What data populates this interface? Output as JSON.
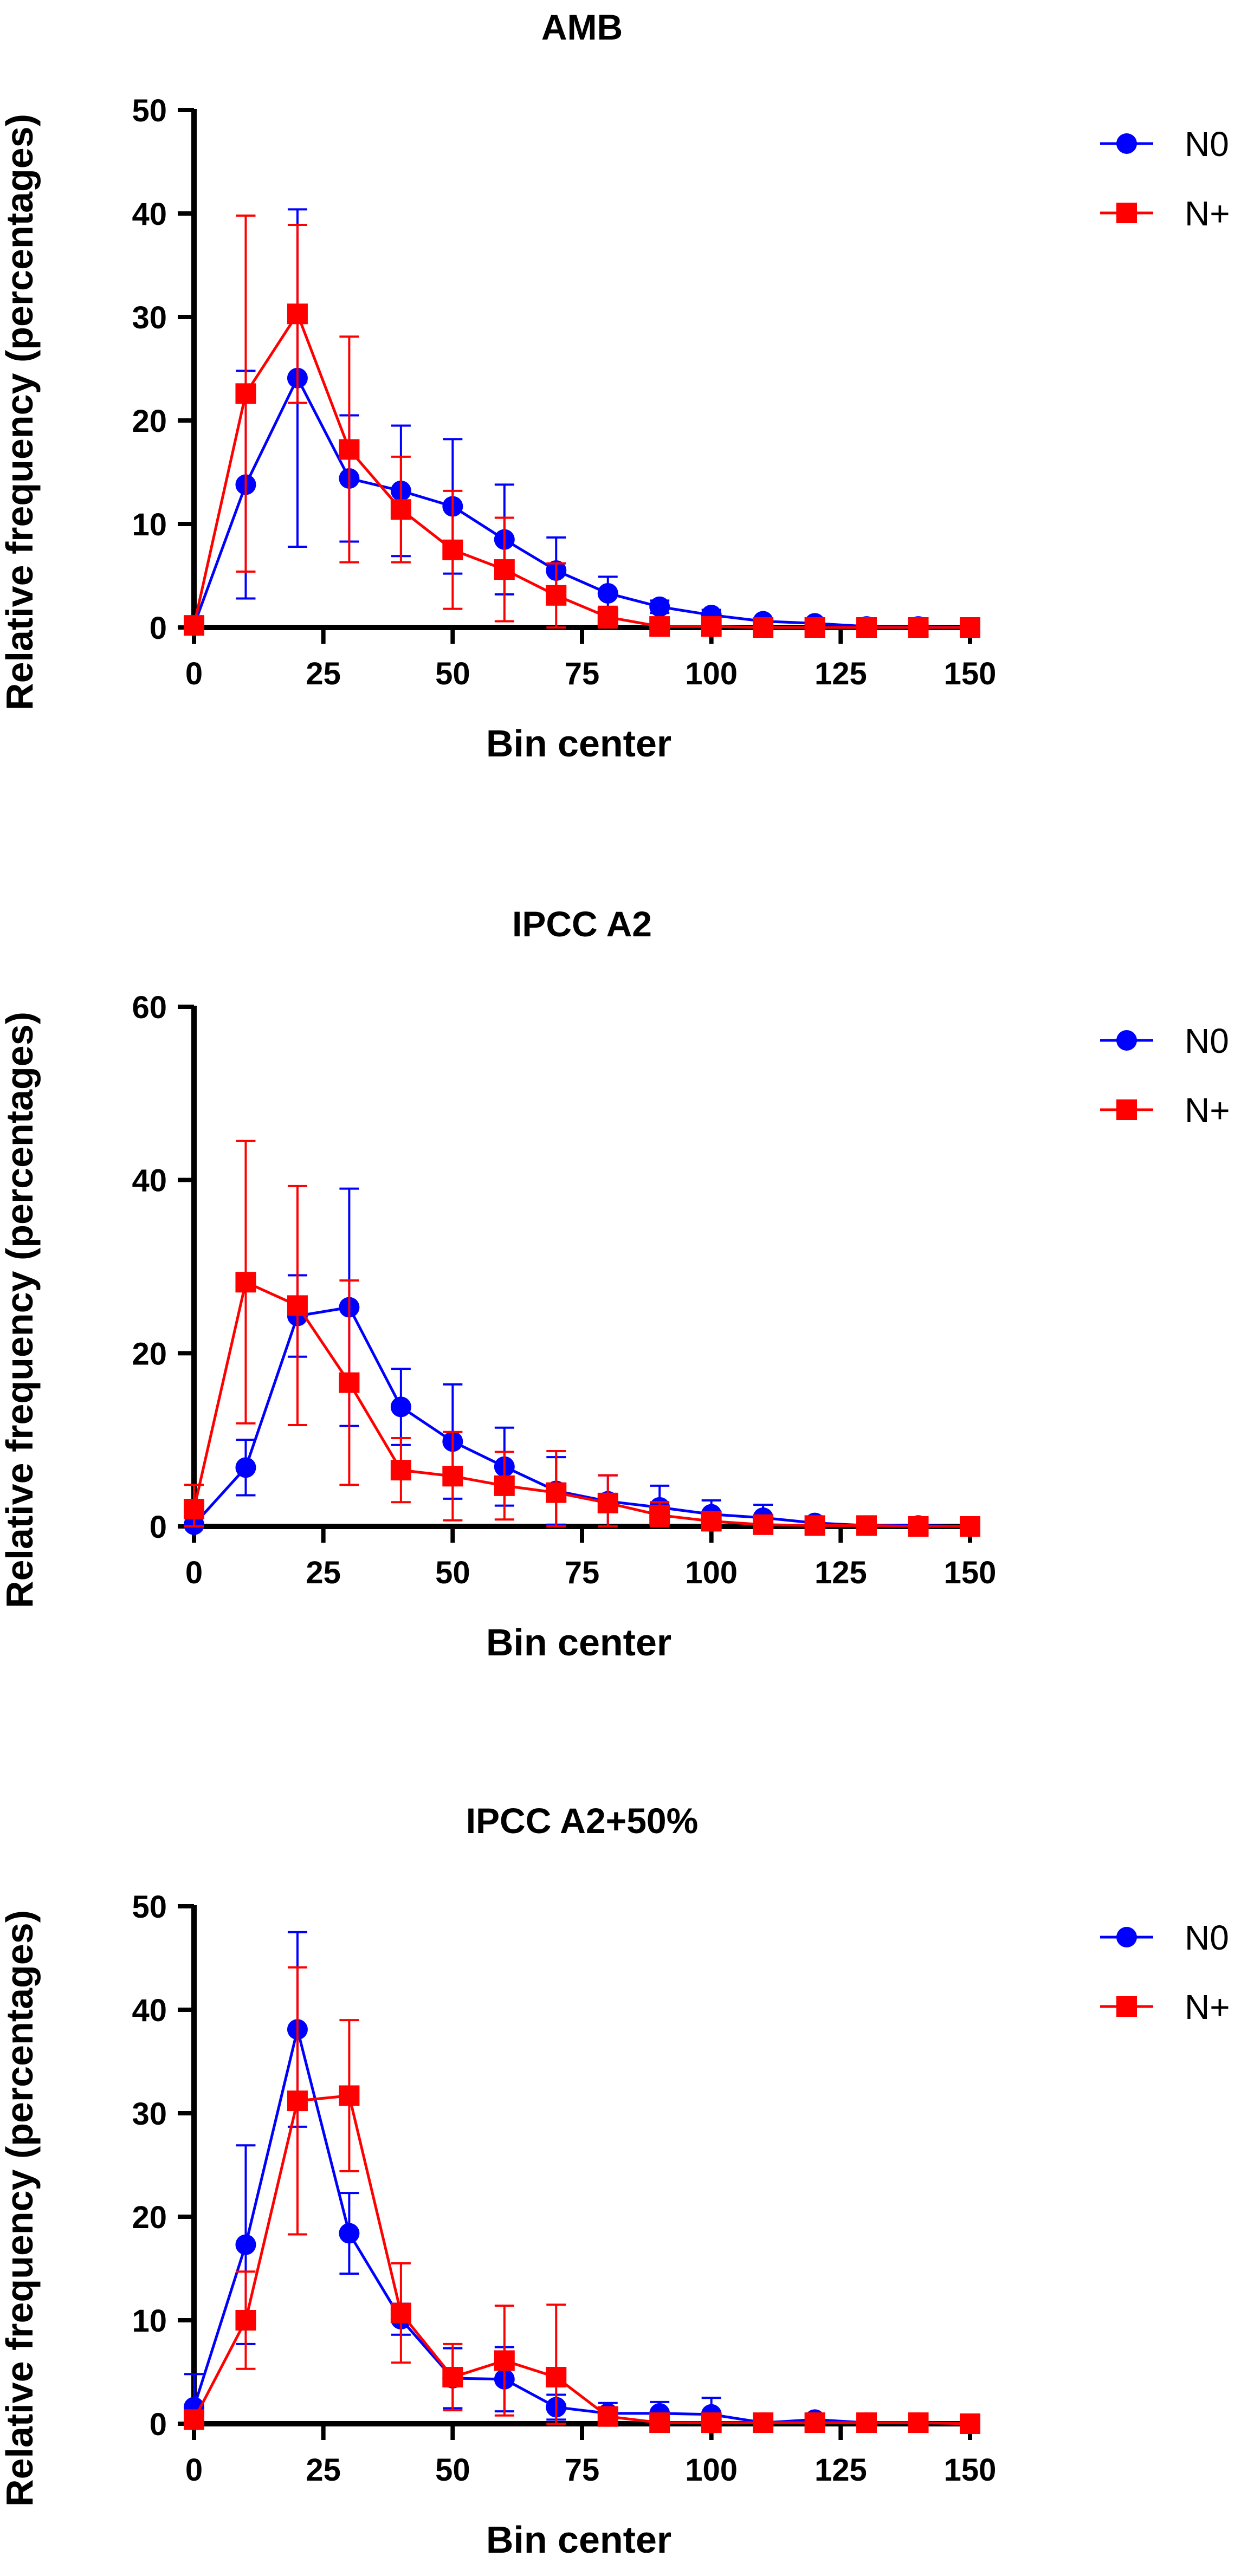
{
  "chart_data": [
    {
      "type": "line",
      "title": "AMB",
      "xlabel": "Bin center",
      "ylabel": "Relative frequency (percentages)",
      "xlim": [
        0,
        150
      ],
      "ylim": [
        0,
        50
      ],
      "xticks": [
        0,
        25,
        50,
        75,
        100,
        125,
        150
      ],
      "yticks": [
        0,
        10,
        20,
        30,
        40,
        50
      ],
      "x": [
        0,
        10,
        20,
        30,
        40,
        50,
        60,
        70,
        80,
        90,
        100,
        110,
        120,
        130,
        140,
        150
      ],
      "legend_position": "top-right",
      "series": [
        {
          "name": "N0",
          "color": "#0000ff",
          "marker": "circle",
          "values": [
            0.2,
            13.8,
            24.1,
            14.4,
            13.2,
            11.7,
            8.5,
            5.5,
            3.3,
            2.0,
            1.2,
            0.6,
            0.4,
            0.1,
            0.1,
            0.0
          ],
          "errors": [
            0.2,
            11.0,
            16.3,
            6.1,
            6.3,
            6.5,
            5.3,
            3.2,
            1.6,
            0.6,
            0.5,
            0.2,
            0.2,
            0.1,
            0.1,
            0.0
          ]
        },
        {
          "name": "N+",
          "color": "#ff0000",
          "marker": "square",
          "values": [
            0.2,
            22.6,
            30.3,
            17.2,
            11.4,
            7.5,
            5.6,
            3.1,
            1.0,
            0.1,
            0.1,
            0.0,
            0.0,
            0.0,
            0.0,
            0.0
          ],
          "errors": [
            0.2,
            17.2,
            8.6,
            10.9,
            5.1,
            5.7,
            5.0,
            3.1,
            1.0,
            0.1,
            0.1,
            0.0,
            0.0,
            0.0,
            0.0,
            0.0
          ]
        }
      ]
    },
    {
      "type": "line",
      "title": "IPCC A2",
      "xlabel": "Bin center",
      "ylabel": "Relative frequency (percentages)",
      "xlim": [
        0,
        150
      ],
      "ylim": [
        0,
        60
      ],
      "xticks": [
        0,
        25,
        50,
        75,
        100,
        125,
        150
      ],
      "yticks": [
        0,
        20,
        40,
        60
      ],
      "x": [
        0,
        10,
        20,
        30,
        40,
        50,
        60,
        70,
        80,
        90,
        100,
        110,
        120,
        130,
        140,
        150
      ],
      "legend_position": "top-right",
      "series": [
        {
          "name": "N0",
          "color": "#0000ff",
          "marker": "circle",
          "values": [
            0.2,
            6.8,
            24.3,
            25.3,
            13.8,
            9.8,
            6.9,
            4.1,
            2.9,
            2.2,
            1.4,
            1.0,
            0.4,
            0.1,
            0.1,
            0.0
          ],
          "errors": [
            0.2,
            3.2,
            4.7,
            13.7,
            4.4,
            6.6,
            4.5,
            3.9,
            3.0,
            2.5,
            1.6,
            1.5,
            0.3,
            0.1,
            0.1,
            0.0
          ]
        },
        {
          "name": "N+",
          "color": "#ff0000",
          "marker": "square",
          "values": [
            2.0,
            28.2,
            25.5,
            16.6,
            6.5,
            5.8,
            4.7,
            3.9,
            2.7,
            1.3,
            0.6,
            0.2,
            0.1,
            0.1,
            0.0,
            0.0
          ],
          "errors": [
            2.8,
            16.3,
            13.8,
            11.8,
            3.7,
            5.1,
            3.9,
            4.8,
            3.2,
            1.5,
            0.7,
            0.3,
            0.1,
            0.1,
            0.0,
            0.0
          ]
        }
      ]
    },
    {
      "type": "line",
      "title": "IPCC A2+50%",
      "xlabel": "Bin center",
      "ylabel": "Relative frequency (percentages)",
      "xlim": [
        0,
        150
      ],
      "ylim": [
        0,
        50
      ],
      "xticks": [
        0,
        25,
        50,
        75,
        100,
        125,
        150
      ],
      "yticks": [
        0,
        10,
        20,
        30,
        40,
        50
      ],
      "x": [
        0,
        10,
        20,
        30,
        40,
        50,
        60,
        70,
        80,
        90,
        100,
        110,
        120,
        130,
        140,
        150
      ],
      "legend_position": "top-right",
      "series": [
        {
          "name": "N0",
          "color": "#0000ff",
          "marker": "circle",
          "values": [
            1.6,
            17.3,
            38.1,
            18.4,
            10.1,
            4.4,
            4.3,
            1.6,
            1.0,
            1.0,
            0.9,
            0.1,
            0.4,
            0.1,
            0.1,
            0.0
          ],
          "errors": [
            3.2,
            9.6,
            9.4,
            3.9,
            1.5,
            2.9,
            3.1,
            1.2,
            1.0,
            1.1,
            1.6,
            0.1,
            0.4,
            0.1,
            0.1,
            0.0
          ]
        },
        {
          "name": "N+",
          "color": "#ff0000",
          "marker": "square",
          "values": [
            0.4,
            10.0,
            31.2,
            31.7,
            10.7,
            4.5,
            6.1,
            4.5,
            0.7,
            0.1,
            0.1,
            0.1,
            0.1,
            0.1,
            0.1,
            0.0
          ],
          "errors": [
            0.4,
            4.7,
            12.9,
            7.3,
            4.8,
            3.2,
            5.3,
            7.0,
            0.7,
            0.1,
            0.1,
            0.1,
            0.1,
            0.1,
            0.1,
            0.0
          ]
        }
      ]
    }
  ]
}
